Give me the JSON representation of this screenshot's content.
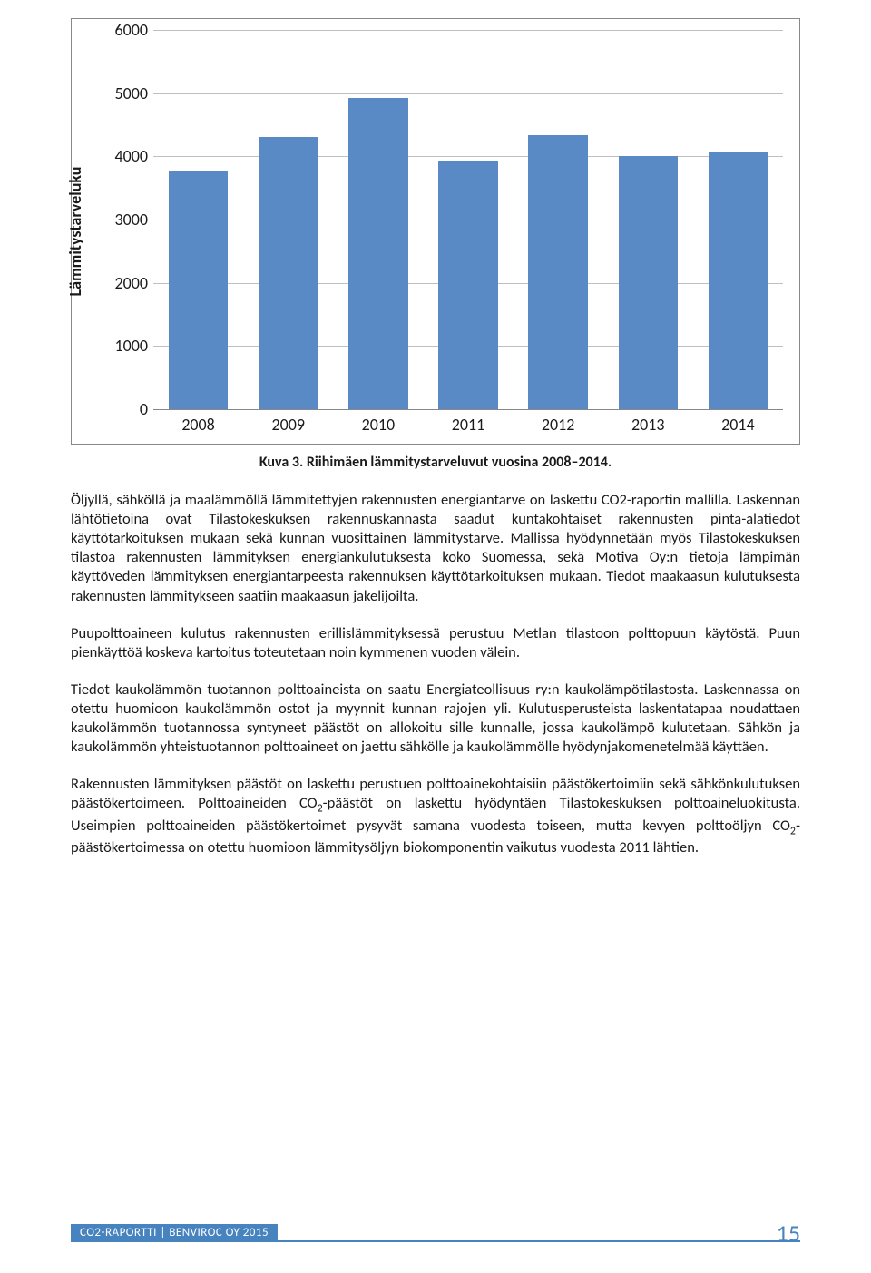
{
  "chart": {
    "type": "bar",
    "y_axis_title": "Lämmitystarveluku",
    "categories": [
      "2008",
      "2009",
      "2010",
      "2011",
      "2012",
      "2013",
      "2014"
    ],
    "values": [
      3760,
      4300,
      4920,
      3930,
      4340,
      4000,
      4060
    ],
    "bar_color": "#5a8ac6",
    "ylim": [
      0,
      6000
    ],
    "ytick_step": 1000,
    "grid_color": "#bfbfbf",
    "axis_color": "#888888",
    "tick_fontsize": 18,
    "title_fontsize": 18,
    "background_color": "#ffffff"
  },
  "caption": "Kuva 3. Riihimäen lämmitystarveluvut vuosina 2008–2014.",
  "paragraphs": {
    "p1": "Öljyllä, sähköllä ja maalämmöllä lämmitettyjen rakennusten energiantarve on laskettu CO2-raportin mallilla. Laskennan lähtötietoina ovat Tilastokeskuksen rakennuskannasta saadut kuntakohtaiset rakennusten pinta-alatiedot käyttötarkoituksen mukaan sekä kunnan vuosittainen lämmitystarve. Mallissa hyödynnetään myös Tilastokeskuksen tilastoa rakennusten lämmityksen energiankulutuksesta koko Suomessa, sekä Motiva Oy:n tietoja lämpimän käyttöveden lämmityksen energiantarpeesta rakennuksen käyttötarkoituksen mukaan. Tiedot maakaasun kulutuksesta rakennusten lämmitykseen saatiin maakaasun jakelijoilta.",
    "p2": "Puupolttoaineen kulutus rakennusten erillislämmityksessä perustuu Metlan tilastoon polttopuun käytöstä. Puun pienkäyttöä koskeva kartoitus toteutetaan noin kymmenen vuoden välein.",
    "p3": "Tiedot kaukolämmön tuotannon polttoaineista on saatu Energiateollisuus ry:n kaukolämpötilastosta. Laskennassa on otettu huomioon kaukolämmön ostot ja myynnit kunnan rajojen yli. Kulutusperusteista laskentatapaa noudattaen kaukolämmön tuotannossa syntyneet päästöt on allokoitu sille kunnalle, jossa kaukolämpö kulutetaan. Sähkön ja kaukolämmön yhteistuotannon polttoaineet on jaettu sähkölle ja kaukolämmölle hyödynjakomenetelmää käyttäen.",
    "p4_pre": "Rakennusten lämmityksen päästöt on laskettu perustuen polttoainekohtaisiin päästökertoimiin sekä sähkönkulutuksen päästökertoimeen. Polttoaineiden CO",
    "p4_mid": "-päästöt on laskettu hyödyntäen Tilastokeskuksen polttoaineluokitusta. Useimpien polttoaineiden päästökertoimet pysyvät samana vuodesta toiseen, mutta kevyen polttoöljyn CO",
    "p4_post": "-päästökertoimessa on otettu huomioon lämmitysöljyn biokomponentin vaikutus vuodesta 2011 lähtien.",
    "sub2": "2"
  },
  "footer": {
    "text": "CO2-RAPORTTI | BENVIROC OY 2015",
    "page_number": "15",
    "bar_color": "#4783bf",
    "text_color": "#ffffff"
  }
}
